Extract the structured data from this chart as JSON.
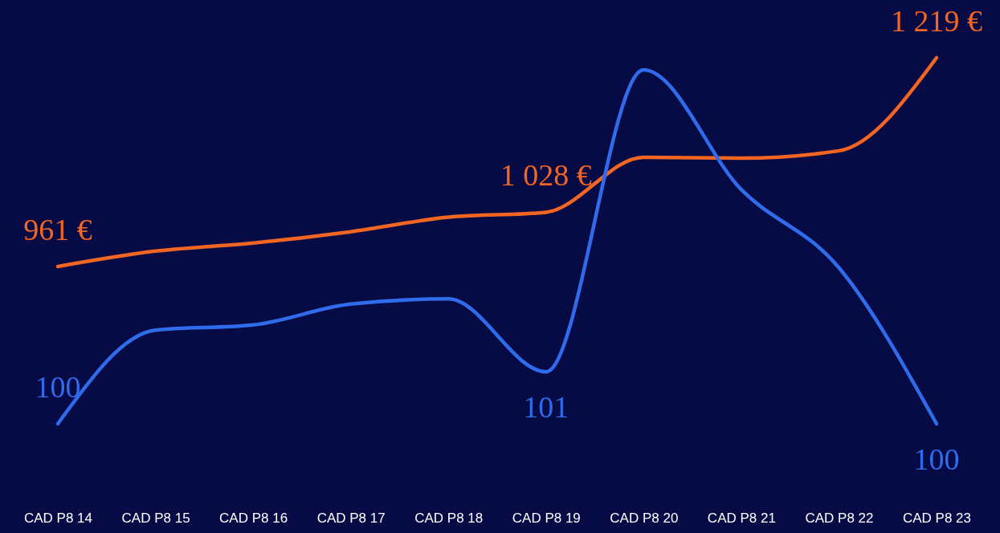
{
  "chart_data": {
    "type": "line",
    "grid": false,
    "marker": "none",
    "line_style": "solid",
    "tick_labels": "x",
    "categories": [
      "CAD P8 14",
      "CAD P8 15",
      "CAD P8 16",
      "CAD P8 17",
      "CAD P8 18",
      "CAD P8 19",
      "CAD P8 20",
      "CAD P8 21",
      "CAD P8 22",
      "CAD P8 23"
    ],
    "series": [
      {
        "color": "#f26522",
        "values": [
          961,
          980,
          990,
          1004,
          1022,
          1028,
          1096,
          1095,
          1104,
          1219
        ],
        "value_labels": [
          "961 €",
          null,
          null,
          null,
          null,
          "1 028 €",
          null,
          null,
          null,
          "1 219 €"
        ]
      },
      {
        "color": "#2f6bea",
        "axis": "y2",
        "values": [
          100,
          101.8,
          101.9,
          102.3,
          102.4,
          101,
          106.8,
          104.5,
          103.0,
          100
        ],
        "value_labels": [
          "100",
          null,
          null,
          null,
          null,
          "101",
          null,
          null,
          null,
          "100"
        ]
      }
    ]
  }
}
